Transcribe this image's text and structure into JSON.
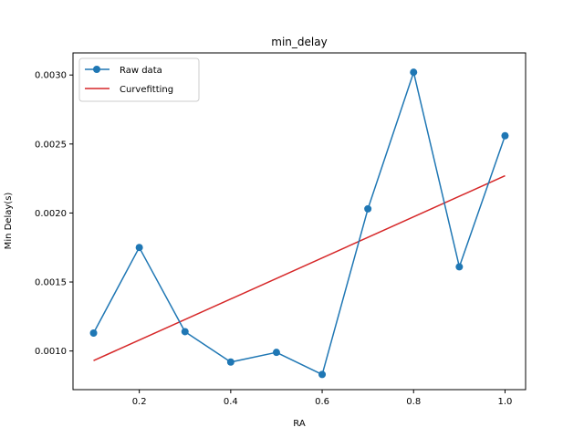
{
  "chart_data": {
    "type": "line",
    "title": "min_delay",
    "xlabel": "RA",
    "ylabel": "Min Delay(s)",
    "xlim": [
      0.055,
      1.045
    ],
    "ylim": [
      0.00072,
      0.00316
    ],
    "x_ticks": [
      0.2,
      0.4,
      0.6,
      0.8,
      1.0
    ],
    "x_tick_labels": [
      "0.2",
      "0.4",
      "0.6",
      "0.8",
      "1.0"
    ],
    "y_ticks": [
      0.001,
      0.0015,
      0.002,
      0.0025,
      0.003
    ],
    "y_tick_labels": [
      "0.0010",
      "0.0015",
      "0.0020",
      "0.0025",
      "0.0030"
    ],
    "grid": false,
    "legend_position": "top-left",
    "series": [
      {
        "name": "Raw data",
        "kind": "line-marker",
        "color": "#1f77b4",
        "x": [
          0.1,
          0.2,
          0.3,
          0.4,
          0.5,
          0.6,
          0.7,
          0.8,
          0.9,
          1.0
        ],
        "y": [
          0.00113,
          0.00175,
          0.00114,
          0.00092,
          0.00099,
          0.00083,
          0.00203,
          0.00302,
          0.00161,
          0.00256
        ]
      },
      {
        "name": "Curvefitting",
        "kind": "line",
        "color": "#d62728",
        "x": [
          0.1,
          1.0
        ],
        "y": [
          0.00093,
          0.00227
        ]
      }
    ]
  }
}
